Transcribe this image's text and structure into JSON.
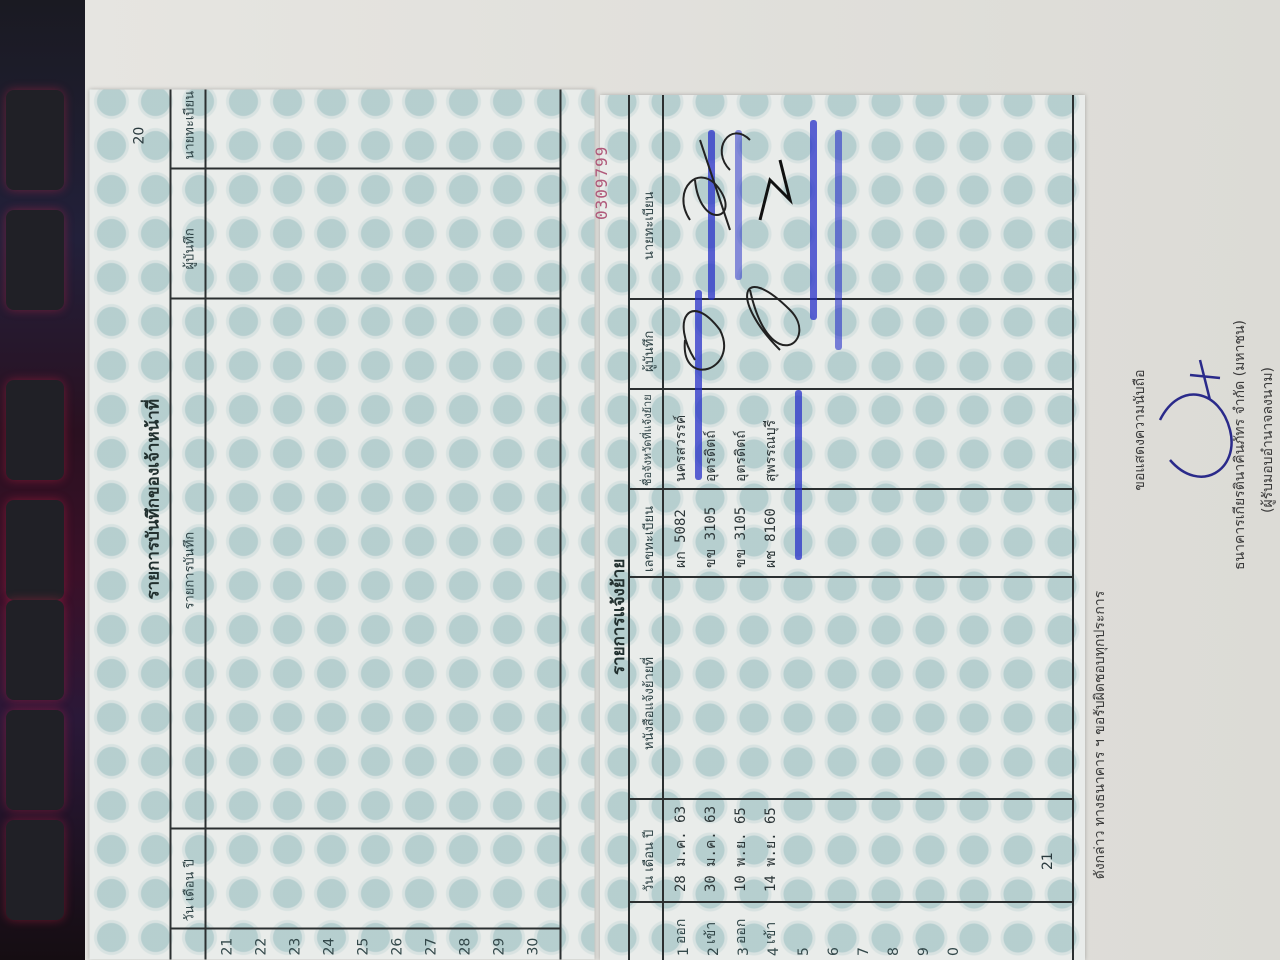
{
  "left_page": {
    "title": "รายการบันทึกของเจ้าหน้าที่",
    "page_number": "20",
    "headers": [
      "วัน เดือน ปี",
      "รายการบันทึก",
      "ผู้บันทึก",
      "นายทะเบียน"
    ],
    "row_numbers": [
      "21",
      "22",
      "23",
      "24",
      "25",
      "26",
      "27",
      "28",
      "29",
      "30"
    ]
  },
  "right_page": {
    "title": "รายการแจ้งย้าย",
    "page_number": "21",
    "serial": "0309799",
    "headers": [
      "วัน เดือน ปี",
      "หนังสือแจ้งย้ายที่",
      "เลขทะเบียน",
      "ชื่อจังหวัดที่แจ้งย้าย",
      "ผู้บันทึก",
      "นายทะเบียน"
    ],
    "rows": [
      {
        "no": "1",
        "type": "ออก",
        "date": "28 ม.ค. 63",
        "plate": "ผก 5082",
        "province": "นครสวรรค์"
      },
      {
        "no": "2",
        "type": "เข้า",
        "date": "30 ม.ค. 63",
        "plate": "ขข 3105",
        "province": "อุตรดิตถ์"
      },
      {
        "no": "3",
        "type": "ออก",
        "date": "10 พ.ย. 65",
        "plate": "ขข 3105",
        "province": "อุตรดิตถ์"
      },
      {
        "no": "4",
        "type": "เข้า",
        "date": "14 พ.ย. 65",
        "plate": "ผช 8160",
        "province": "สุพรรณบุรี"
      },
      {
        "no": "5"
      },
      {
        "no": "6"
      },
      {
        "no": "7"
      },
      {
        "no": "8"
      },
      {
        "no": "9"
      },
      {
        "no": "0"
      }
    ]
  },
  "letter": {
    "body_line": "ดังกล่าว ทางธนาคาร ฯ ขอรับผิดชอบทุกประการ",
    "closing": "ขอแสดงความนับถือ",
    "company": "ธนาคารเกียรตินาคินภัทร จำกัด (มหาชน)",
    "signer_role": "(ผู้รับมอบอำนาจลงนาม)"
  },
  "colors": {
    "ink": "#2b2f30",
    "stamp": "#2832c8",
    "serial": "#b0597a",
    "pattern": "#78aaaf"
  }
}
